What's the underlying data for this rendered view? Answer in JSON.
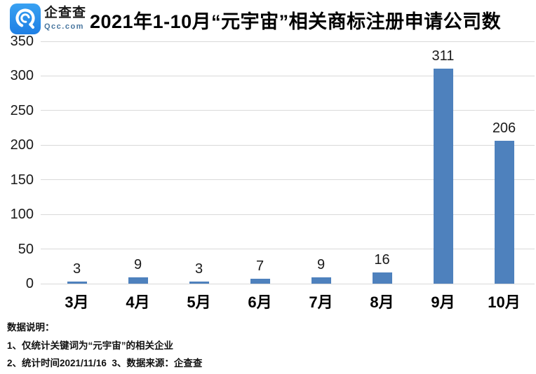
{
  "header": {
    "logo": {
      "name": "企查查",
      "domain": "Qcc.com",
      "icon": "qcc-logo-icon",
      "brand_color": "#2e8fe8"
    },
    "title": "2021年1-10月“元宇宙”相关商标注册申请公司数"
  },
  "chart_data": {
    "type": "bar",
    "title": "2021年1-10月“元宇宙”相关商标注册申请公司数",
    "categories": [
      "3月",
      "4月",
      "5月",
      "6月",
      "7月",
      "8月",
      "9月",
      "10月"
    ],
    "values": [
      3,
      9,
      3,
      7,
      9,
      16,
      311,
      206
    ],
    "xlabel": "",
    "ylabel": "",
    "ylim": [
      0,
      350
    ],
    "ytick_step": 50,
    "grid": true,
    "legend": false,
    "value_labels": true,
    "bar_color": "#4e81bd",
    "gridline_color": "#d9d9d9",
    "label_color": "#1a1a1a"
  },
  "notes": {
    "heading": "数据说明：",
    "lines": [
      "1、仅统计关键词为“元宇宙”的相关企业",
      "2、统计时间2021/11/16  3、数据来源：企查查"
    ]
  }
}
